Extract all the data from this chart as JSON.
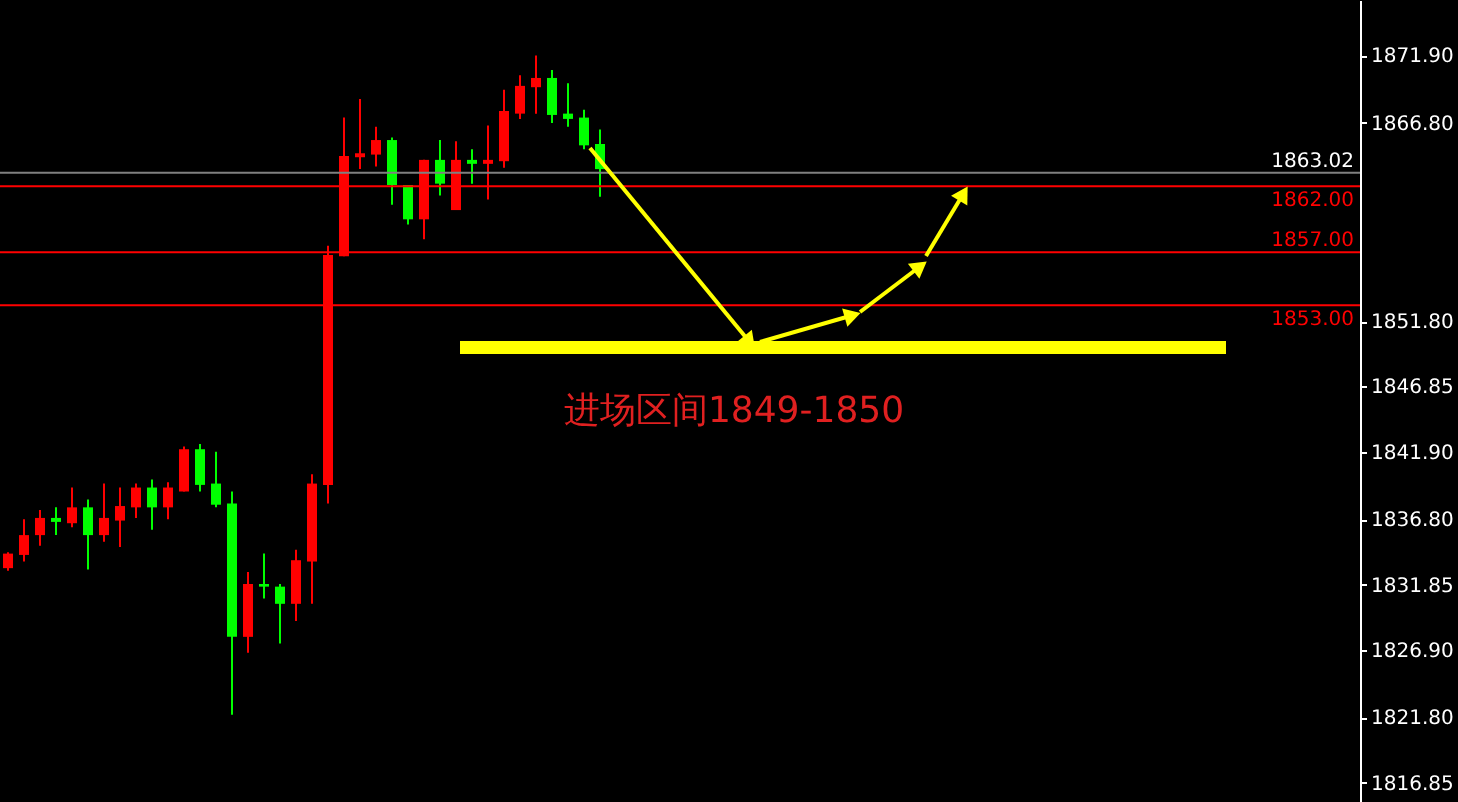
{
  "chart_data": {
    "type": "candlestick",
    "categories": [
      null,
      null,
      null,
      null,
      null,
      null,
      null,
      null,
      null,
      null,
      null,
      null,
      null,
      null,
      null,
      null,
      null,
      null,
      null,
      null,
      null,
      null,
      null,
      null,
      null,
      null,
      null,
      null,
      null,
      null,
      null,
      null,
      null,
      null,
      null,
      null,
      null,
      null,
      null,
      null,
      null,
      null,
      null,
      null,
      null,
      null,
      null,
      null,
      null,
      null,
      null,
      null,
      null,
      null,
      null,
      null,
      null,
      null,
      null,
      null,
      null,
      null,
      null,
      null,
      null,
      null,
      null,
      null,
      null,
      null,
      null,
      null,
      null,
      null,
      null,
      null,
      null,
      null,
      null,
      null,
      null,
      null,
      null,
      null,
      null
    ],
    "ohlc": [
      [
        1833.1,
        1834.3,
        1832.9,
        1834.2
      ],
      [
        1834.1,
        1836.8,
        1833.6,
        1835.6
      ],
      [
        1835.6,
        1837.5,
        1834.8,
        1836.9
      ],
      [
        1836.9,
        1837.7,
        1835.6,
        1836.6
      ],
      [
        1836.5,
        1839.2,
        1836.2,
        1837.7
      ],
      [
        1837.7,
        1838.3,
        1833.0,
        1835.6
      ],
      [
        1835.6,
        1839.5,
        1835.1,
        1836.9
      ],
      [
        1836.7,
        1839.2,
        1834.7,
        1837.8
      ],
      [
        1837.7,
        1839.5,
        1836.9,
        1839.2
      ],
      [
        1839.2,
        1839.8,
        1836.0,
        1837.7
      ],
      [
        1837.7,
        1839.6,
        1836.8,
        1839.2
      ],
      [
        1838.9,
        1842.3,
        1838.9,
        1842.1
      ],
      [
        1842.1,
        1842.5,
        1838.9,
        1839.4
      ],
      [
        1839.5,
        1841.9,
        1837.7,
        1837.9
      ],
      [
        1838.0,
        1838.9,
        1822.0,
        1827.9
      ],
      [
        1827.9,
        1832.8,
        1826.7,
        1831.9
      ],
      [
        1831.9,
        1834.2,
        1830.8,
        1831.7
      ],
      [
        1831.7,
        1831.9,
        1827.4,
        1830.4
      ],
      [
        1830.4,
        1834.5,
        1829.1,
        1833.7
      ],
      [
        1833.6,
        1840.2,
        1830.4,
        1839.5
      ],
      [
        1839.4,
        1857.5,
        1838.0,
        1856.8
      ],
      [
        1856.7,
        1867.2,
        1856.7,
        1864.3
      ],
      [
        1864.2,
        1868.6,
        1863.3,
        1864.5
      ],
      [
        1864.4,
        1866.5,
        1863.5,
        1865.5
      ],
      [
        1865.5,
        1865.7,
        1860.6,
        1862.1
      ],
      [
        1862.1,
        1862.1,
        1859.1,
        1859.5
      ],
      [
        1859.5,
        1864.0,
        1858.0,
        1864.0
      ],
      [
        1864.0,
        1865.5,
        1861.3,
        1862.2
      ],
      [
        1860.2,
        1865.4,
        1860.2,
        1864.0
      ],
      [
        1864.0,
        1864.8,
        1862.2,
        1863.7
      ],
      [
        1863.7,
        1866.6,
        1861.0,
        1864.0
      ],
      [
        1863.9,
        1869.3,
        1863.4,
        1867.7
      ],
      [
        1867.5,
        1870.4,
        1867.1,
        1869.6
      ],
      [
        1869.5,
        1871.9,
        1867.5,
        1870.2
      ],
      [
        1870.2,
        1870.8,
        1866.8,
        1867.4
      ],
      [
        1867.5,
        1869.8,
        1866.5,
        1867.1
      ],
      [
        1867.2,
        1867.8,
        1864.8,
        1865.1
      ],
      [
        1865.2,
        1866.3,
        1861.2,
        1863.3
      ],
      null,
      null,
      null,
      null,
      null,
      null,
      null,
      null,
      null,
      null,
      null,
      null,
      null,
      null,
      null,
      null,
      null,
      null,
      null,
      null,
      null,
      null,
      null,
      null,
      null,
      null,
      null,
      null,
      null,
      null,
      null,
      null,
      null,
      null,
      null,
      null,
      null,
      null,
      null,
      null,
      null,
      null,
      null,
      null,
      null,
      null,
      null
    ],
    "colors": [
      "#ff0000",
      "#ff0000",
      "#ff0000",
      "#00ff00",
      "#ff0000",
      "#00ff00",
      "#ff0000",
      "#ff0000",
      "#ff0000",
      "#00ff00",
      "#ff0000",
      "#ff0000",
      "#00ff00",
      "#00ff00",
      "#00ff00",
      "#ff0000",
      "#00ff00",
      "#00ff00",
      "#ff0000",
      "#ff0000",
      "#ff0000",
      "#ff0000",
      "#ff0000",
      "#ff0000",
      "#00ff00",
      "#00ff00",
      "#ff0000",
      "#00ff00",
      "#ff0000",
      "#00ff00",
      "#ff0000",
      "#ff0000",
      "#ff0000",
      "#ff0000",
      "#00ff00",
      "#00ff00",
      "#00ff00",
      "#00ff00",
      null,
      null,
      null,
      null,
      null,
      null,
      null,
      null,
      null,
      null,
      null,
      null,
      null,
      null,
      null,
      null,
      null,
      null,
      null,
      null,
      null,
      null,
      null,
      null,
      null,
      null,
      null,
      null,
      null,
      null,
      null,
      null,
      null,
      null,
      null,
      null,
      null,
      null,
      null,
      null,
      null,
      null,
      null,
      null,
      null,
      null,
      null
    ],
    "ylim": [
      1815.4,
      1876.1
    ],
    "yticks": [
      {
        "value": 1871.9,
        "label": "1871.90"
      },
      {
        "value": 1866.8,
        "label": "1866.80"
      },
      {
        "value": 1851.8,
        "label": "1851.80"
      },
      {
        "value": 1846.85,
        "label": "1846.85"
      },
      {
        "value": 1841.9,
        "label": "1841.90"
      },
      {
        "value": 1836.8,
        "label": "1836.80"
      },
      {
        "value": 1831.85,
        "label": "1831.85"
      },
      {
        "value": 1826.9,
        "label": "1826.90"
      },
      {
        "value": 1821.8,
        "label": "1821.80"
      },
      {
        "value": 1816.85,
        "label": "1816.85"
      }
    ],
    "ref_lines": [
      {
        "axis": "y",
        "value": 1863.02,
        "label": "1863.02",
        "color": "#808080"
      },
      {
        "axis": "y",
        "value": 1862.0,
        "label": "1862.00",
        "color": "#ff0000"
      },
      {
        "axis": "y",
        "value": 1857.0,
        "label": "1857.00",
        "color": "#ff0000"
      },
      {
        "axis": "y",
        "value": 1853.0,
        "label": "1853.00",
        "color": "#ff0000"
      }
    ],
    "bands": [
      {
        "axis": "y",
        "from": 1849.3,
        "to": 1850.3,
        "color": "#ffff00"
      }
    ],
    "annotations": [
      "进场区间1849-1850"
    ],
    "tick_labels": "y",
    "grid": false
  }
}
